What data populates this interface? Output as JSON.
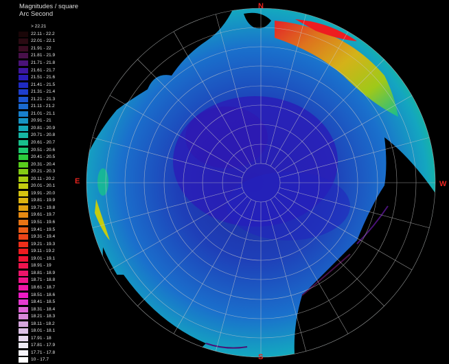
{
  "legend": {
    "title_line1": "Magnitudes / square",
    "title_line2": "Arc Second",
    "items": [
      {
        "label": "> 22.21",
        "color": "#000000"
      },
      {
        "label": "22.11 - 22.2",
        "color": "#1a0608"
      },
      {
        "label": "22.01 - 22.1",
        "color": "#2a0a12"
      },
      {
        "label": "21.91 - 22",
        "color": "#3a0c22"
      },
      {
        "label": "21.81 - 21.9",
        "color": "#48104a"
      },
      {
        "label": "21.71 - 21.8",
        "color": "#4a1278"
      },
      {
        "label": "21.61 - 21.7",
        "color": "#3e16a0"
      },
      {
        "label": "21.51 - 21.6",
        "color": "#2a1cb8"
      },
      {
        "label": "21.41 - 21.5",
        "color": "#1f2ac2"
      },
      {
        "label": "21.31 - 21.4",
        "color": "#1e3ecc"
      },
      {
        "label": "21.21 - 21.3",
        "color": "#1c55d0"
      },
      {
        "label": "21.11 - 21.2",
        "color": "#1a6ad0"
      },
      {
        "label": "21.01 - 21.1",
        "color": "#1880cc"
      },
      {
        "label": "20.91 - 21",
        "color": "#1694c4"
      },
      {
        "label": "20.81 - 20.9",
        "color": "#14a8b8"
      },
      {
        "label": "20.71 - 20.8",
        "color": "#16b6a4"
      },
      {
        "label": "20.61 - 20.7",
        "color": "#18c08c"
      },
      {
        "label": "20.51 - 20.6",
        "color": "#1cc870"
      },
      {
        "label": "20.41 - 20.5",
        "color": "#2ccc3c"
      },
      {
        "label": "20.31 - 20.4",
        "color": "#58cc1c"
      },
      {
        "label": "20.21 - 20.3",
        "color": "#84cc14"
      },
      {
        "label": "20.11 - 20.2",
        "color": "#a6cc10"
      },
      {
        "label": "20.01 - 20.1",
        "color": "#c4cc10"
      },
      {
        "label": "19.91 - 20.0",
        "color": "#d6c410"
      },
      {
        "label": "19.81 - 19.9",
        "color": "#deb410"
      },
      {
        "label": "19.71 - 19.8",
        "color": "#e2a010"
      },
      {
        "label": "19.61 - 19.7",
        "color": "#e68a12"
      },
      {
        "label": "19.51 - 19.6",
        "color": "#e87414"
      },
      {
        "label": "19.41 - 19.5",
        "color": "#ea5c16"
      },
      {
        "label": "19.31 - 19.4",
        "color": "#ec4418"
      },
      {
        "label": "19.21 - 19.3",
        "color": "#ee2e1a"
      },
      {
        "label": "19.11 - 19.2",
        "color": "#ee1c20"
      },
      {
        "label": "19.01 - 19.1",
        "color": "#ee1434"
      },
      {
        "label": "18.91 - 19",
        "color": "#ee144e"
      },
      {
        "label": "18.81 - 18.9",
        "color": "#ee146a"
      },
      {
        "label": "18.71 - 18.8",
        "color": "#ee1488"
      },
      {
        "label": "18.61 - 18.7",
        "color": "#ee16a6"
      },
      {
        "label": "18.51 - 18.6",
        "color": "#ee1ac4"
      },
      {
        "label": "18.41 - 18.5",
        "color": "#e63ad0"
      },
      {
        "label": "18.31 - 18.4",
        "color": "#de64d6"
      },
      {
        "label": "18.21 - 18.3",
        "color": "#d888da"
      },
      {
        "label": "18.11 - 18.2",
        "color": "#d6a6de"
      },
      {
        "label": "18.01 - 18.1",
        "color": "#dcc0e6"
      },
      {
        "label": "17.91 - 18",
        "color": "#e6d8ee"
      },
      {
        "label": "17.81 - 17.9",
        "color": "#eeeaf4"
      },
      {
        "label": "17.71 - 17.8",
        "color": "#f6f4fa"
      },
      {
        "label": "10 - 17.7",
        "color": "#ffffff"
      }
    ]
  },
  "compass": {
    "n": "N",
    "s": "S",
    "e": "E",
    "w": "W"
  },
  "colors": {
    "background": "#000000",
    "compass": "#e8231e",
    "grid": "#c8c8c8"
  }
}
